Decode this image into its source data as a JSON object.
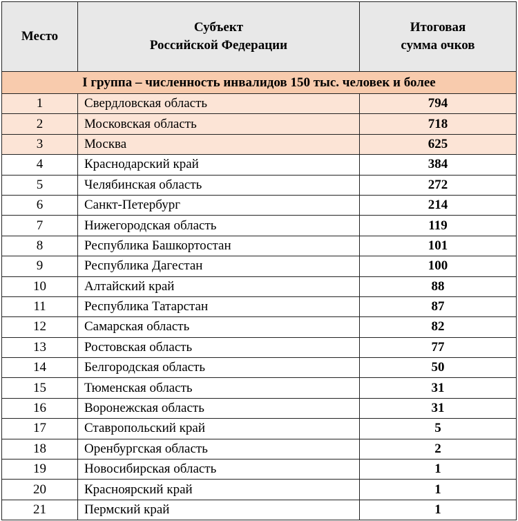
{
  "header": {
    "place": "Место",
    "subject_line1": "Субъект",
    "subject_line2": "Российской Федерации",
    "score_line1": "Итоговая",
    "score_line2": "сумма очков"
  },
  "group_title": "I группа – численность инвалидов 150 тыс. человек и более",
  "colors": {
    "header_bg": "#e8e8e8",
    "group_bg": "#f8cbad",
    "top3_bg": "#fce4d6"
  },
  "rows": [
    {
      "place": "1",
      "name": "Свердловская область",
      "score": "794"
    },
    {
      "place": "2",
      "name": "Московская область",
      "score": "718"
    },
    {
      "place": "3",
      "name": "Москва",
      "score": "625"
    },
    {
      "place": "4",
      "name": "Краснодарский край",
      "score": "384"
    },
    {
      "place": "5",
      "name": "Челябинская область",
      "score": "272"
    },
    {
      "place": "6",
      "name": "Санкт-Петербург",
      "score": "214"
    },
    {
      "place": "7",
      "name": "Нижегородская область",
      "score": "119"
    },
    {
      "place": "8",
      "name": "Республика Башкортостан",
      "score": "101"
    },
    {
      "place": "9",
      "name": "Республика Дагестан",
      "score": "100"
    },
    {
      "place": "10",
      "name": "Алтайский край",
      "score": "88"
    },
    {
      "place": "11",
      "name": "Республика Татарстан",
      "score": "87"
    },
    {
      "place": "12",
      "name": "Самарская область",
      "score": "82"
    },
    {
      "place": "13",
      "name": "Ростовская область",
      "score": "77"
    },
    {
      "place": "14",
      "name": "Белгородская область",
      "score": "50"
    },
    {
      "place": "15",
      "name": "Тюменская область",
      "score": "31"
    },
    {
      "place": "16",
      "name": "Воронежская область",
      "score": "31"
    },
    {
      "place": "17",
      "name": "Ставропольский край",
      "score": "5"
    },
    {
      "place": "18",
      "name": "Оренбургская область",
      "score": "2"
    },
    {
      "place": "19",
      "name": "Новосибирская область",
      "score": "1"
    },
    {
      "place": "20",
      "name": "Красноярский край",
      "score": "1"
    },
    {
      "place": "21",
      "name": "Пермский край",
      "score": "1"
    }
  ]
}
